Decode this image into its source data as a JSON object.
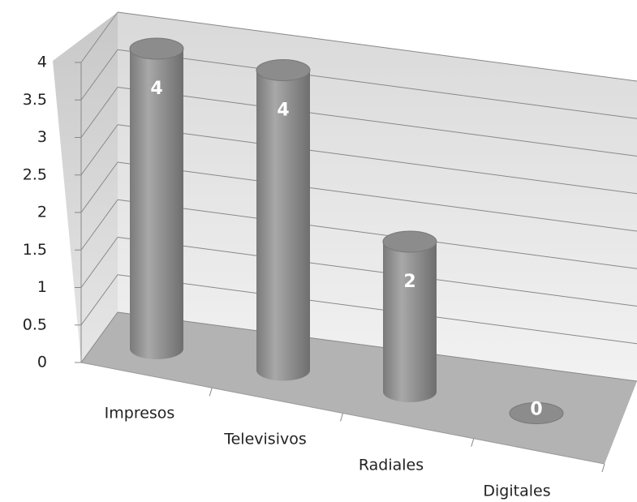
{
  "chart_data": {
    "type": "bar",
    "categories": [
      "Impresos",
      "Televisivos",
      "Radiales",
      "Digitales"
    ],
    "values": [
      4,
      4,
      2,
      0
    ],
    "color": "#8c8c8c",
    "ylim": [
      0,
      4
    ],
    "yticks": [
      0,
      0.5,
      1,
      1.5,
      2,
      2.5,
      3,
      3.5,
      4
    ],
    "grid": true
  }
}
